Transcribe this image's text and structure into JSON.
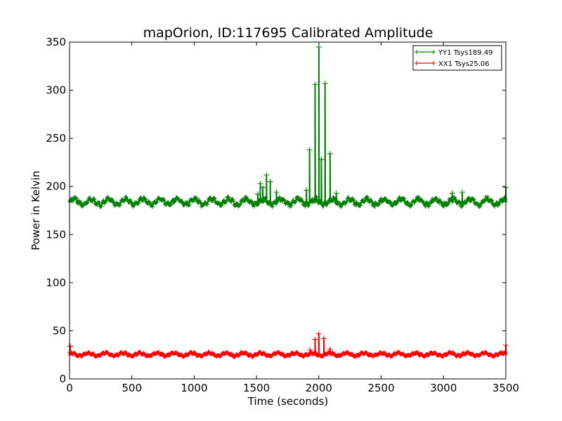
{
  "chart_data": {
    "type": "line",
    "title": "mapOrion, ID:117695 Calibrated Amplitude",
    "xlabel": "Time (seconds)",
    "ylabel": "Power in Kelvin",
    "xlim": [
      0,
      3500
    ],
    "ylim": [
      0,
      350
    ],
    "xticks": [
      0,
      500,
      1000,
      1500,
      2000,
      2500,
      3000,
      3500
    ],
    "yticks": [
      0,
      50,
      100,
      150,
      200,
      250,
      300,
      350
    ],
    "grid": false,
    "legend_position": "top-right",
    "marker": "+",
    "series": [
      {
        "name": "YY1 Tsys189.49",
        "color": "#008000",
        "baseline": 184,
        "ripple": 3,
        "peaks": [
          [
            1510,
            192
          ],
          [
            1530,
            203
          ],
          [
            1550,
            199
          ],
          [
            1580,
            212
          ],
          [
            1610,
            205
          ],
          [
            1660,
            194
          ],
          [
            1900,
            196
          ],
          [
            1925,
            238
          ],
          [
            1970,
            306
          ],
          [
            2000,
            345
          ],
          [
            2020,
            228
          ],
          [
            2050,
            307
          ],
          [
            2090,
            234
          ],
          [
            2140,
            193
          ],
          [
            3070,
            193
          ],
          [
            3150,
            194
          ],
          [
            3500,
            199
          ]
        ]
      },
      {
        "name": "XX1 Tsys25.06",
        "color": "#ff0000",
        "baseline": 25.5,
        "ripple": 1.5,
        "peaks": [
          [
            5,
            34
          ],
          [
            1930,
            30
          ],
          [
            1970,
            41
          ],
          [
            2000,
            47
          ],
          [
            2040,
            42
          ],
          [
            2090,
            31
          ],
          [
            3500,
            35
          ]
        ]
      }
    ]
  }
}
